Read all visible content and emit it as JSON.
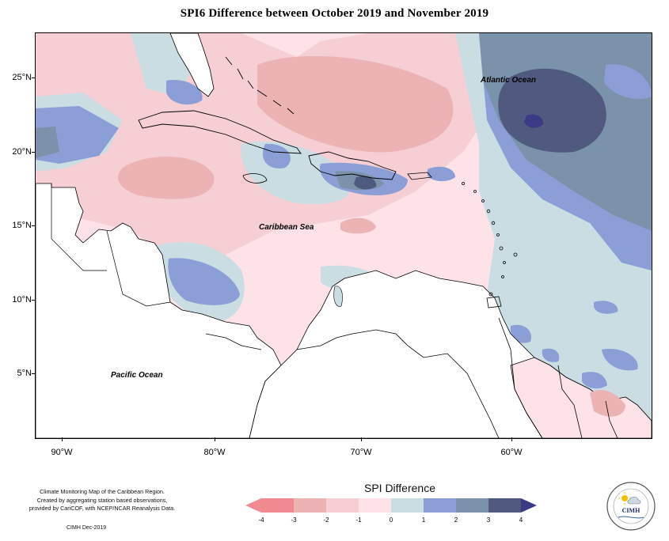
{
  "title": "SPI6 Difference between October 2019 and November 2019",
  "map": {
    "lat_labels": [
      "25°N",
      "20°N",
      "15°N",
      "10°N",
      "5°N"
    ],
    "lon_labels": [
      "90°W",
      "80°W",
      "70°W",
      "60°W"
    ],
    "places": {
      "atlantic": "Atlantic Ocean",
      "caribbean": "Caribbean Sea",
      "pacific": "Pacific Ocean"
    },
    "colors": {
      "cat_neg4": "#f08a90",
      "cat_neg3": "#ecb3b5",
      "cat_neg2": "#f6cfd4",
      "cat_neg1": "#fde3e8",
      "cat_0": "#c9dde3",
      "cat_1": "#8c9ed6",
      "cat_2": "#7b92ab",
      "cat_3": "#505a80",
      "cat_4": "#3b3a86",
      "land": "#ffffff"
    }
  },
  "legend": {
    "title": "SPI Difference",
    "ticks": [
      "-4",
      "-3",
      "-2",
      "-1",
      "0",
      "1",
      "2",
      "3",
      "4"
    ]
  },
  "footer": {
    "line1": "Climate Monitoring Map of the Caribbean Region.",
    "line2": "Created by aggregating station based observations,",
    "line3": "provided by CariCOF, with NCEP/NCAR Reanalysis Data.",
    "date": "CIMH Dec-2019"
  },
  "logo": {
    "text": "CIMH",
    "icon": "cimh-logo-icon"
  }
}
